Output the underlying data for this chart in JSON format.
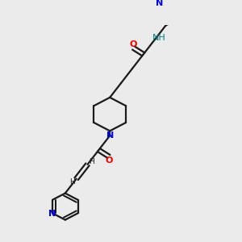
{
  "bg_color": "#ebebeb",
  "bond_color": "#1a1a1a",
  "N_color": "#0000ee",
  "O_color": "#ee0000",
  "NH_color": "#008080",
  "line_width": 1.6,
  "font_size": 7.5,
  "fig_width": 3.0,
  "fig_height": 3.0,
  "xlim": [
    0,
    10
  ],
  "ylim": [
    0,
    10
  ]
}
